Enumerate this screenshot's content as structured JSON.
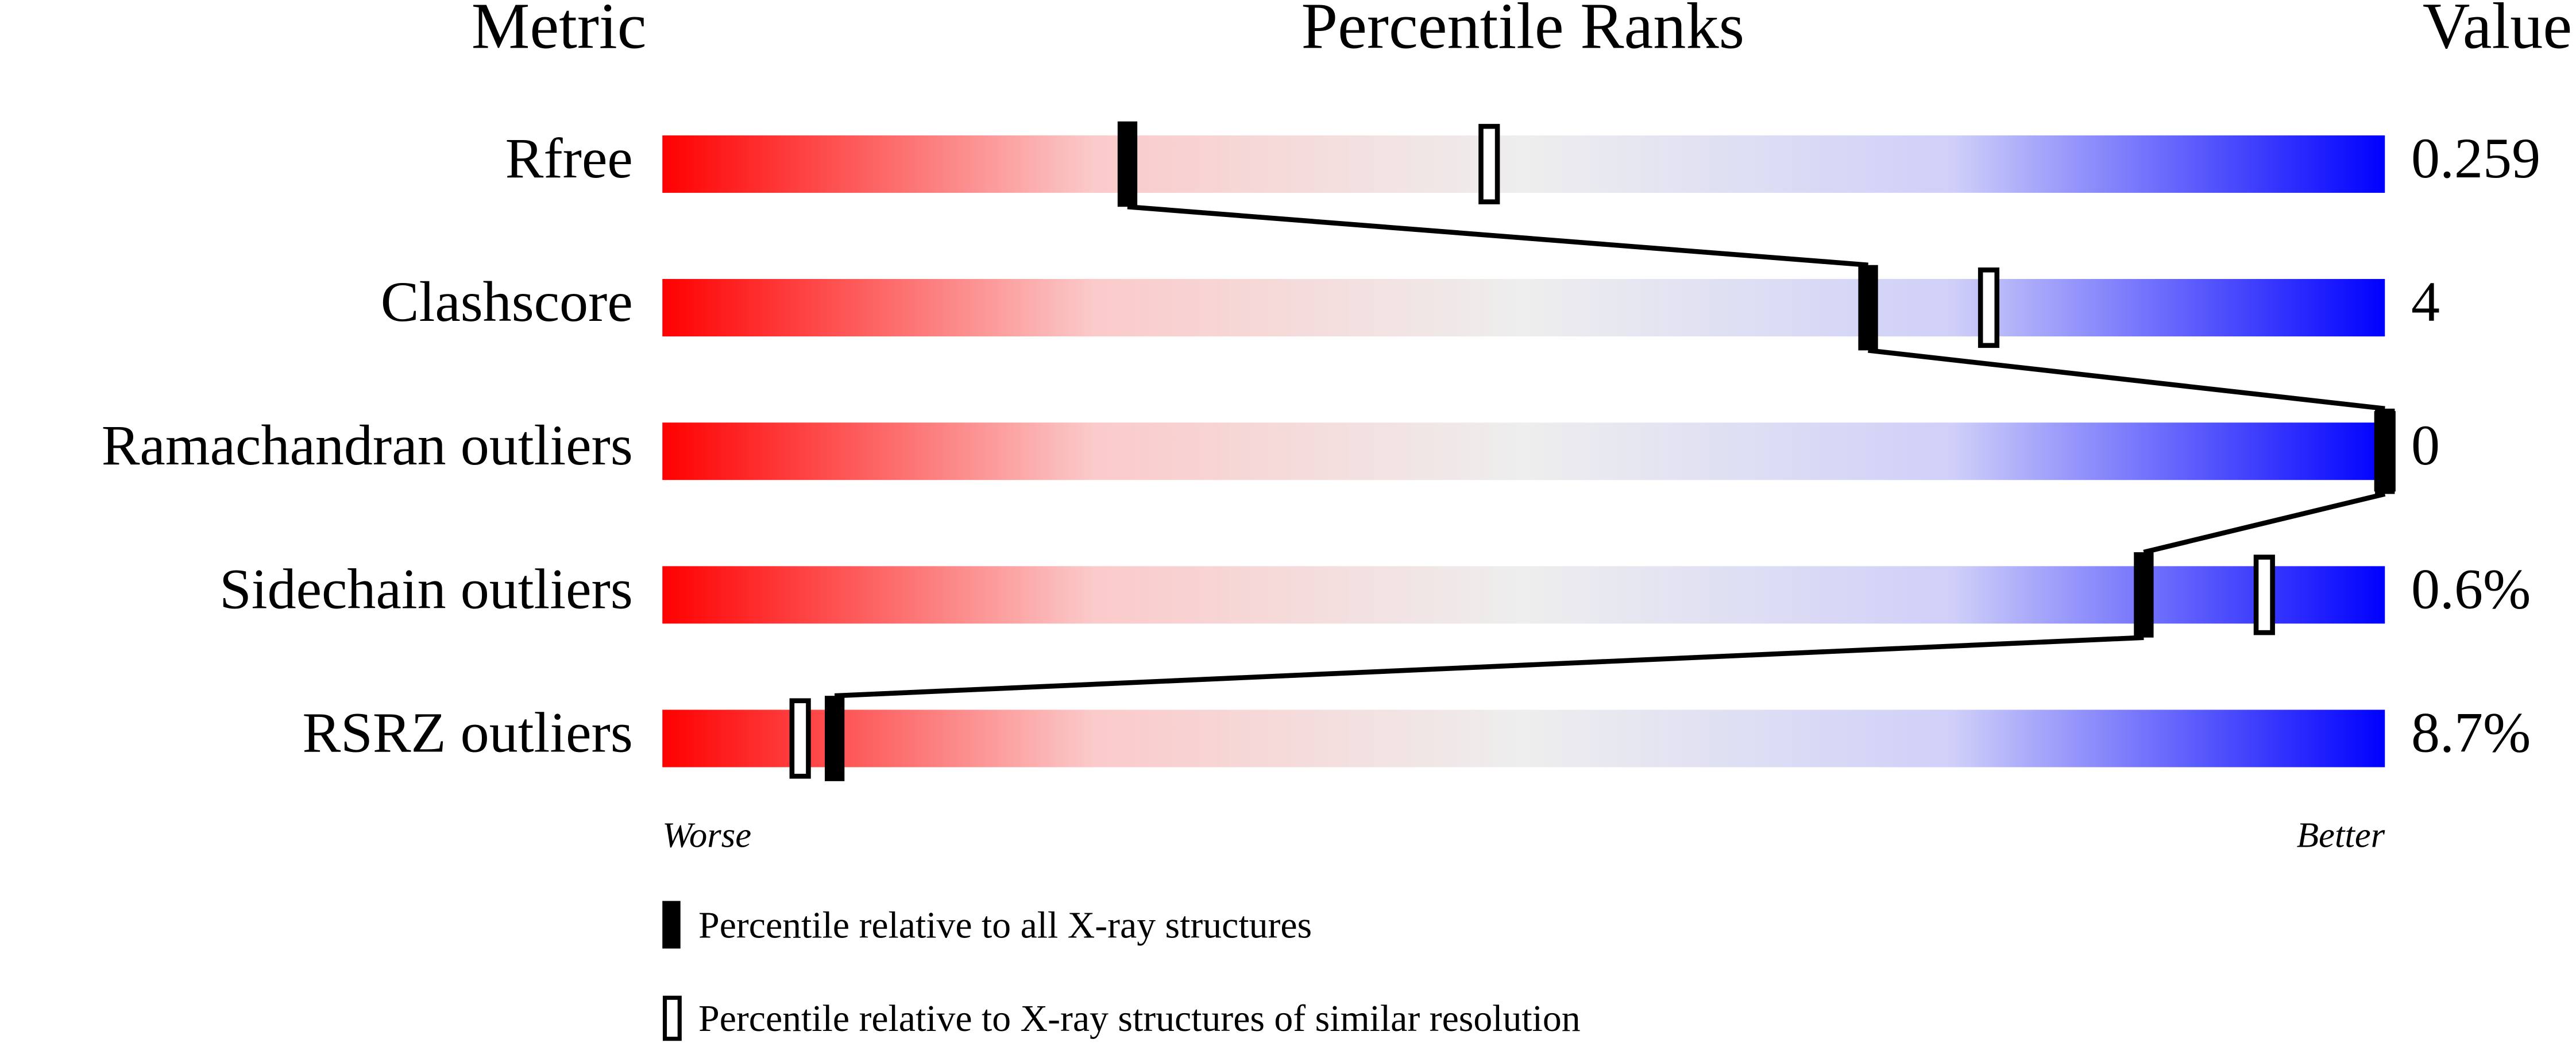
{
  "chart_data": {
    "type": "percentile-slider",
    "headers": [
      "Metric",
      "Percentile Ranks",
      "Value"
    ],
    "categories": [
      "Rfree",
      "Clashscore",
      "Ramachandran outliers",
      "Sidechain outliers",
      "RSRZ outliers"
    ],
    "metric_values": [
      "0.259",
      "4",
      "0",
      "0.6%",
      "8.7%"
    ],
    "xlim": [
      0,
      100
    ],
    "worse_label": "Worse",
    "better_label": "Better",
    "series": [
      {
        "name": "Percentile relative to all X-ray structures",
        "style": "filled",
        "color": "#000000",
        "values": [
          27,
          70,
          100,
          86,
          10
        ]
      },
      {
        "name": "Percentile relative to X-ray structures of similar resolution",
        "style": "open",
        "color": "#000000",
        "values": [
          48,
          77,
          100,
          93,
          8
        ]
      }
    ]
  }
}
